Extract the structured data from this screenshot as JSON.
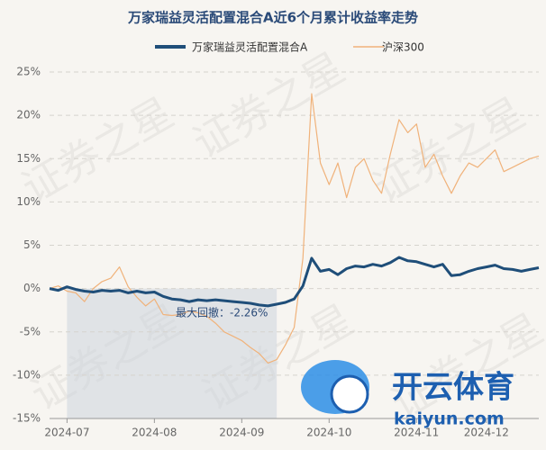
{
  "chart_data": {
    "type": "line",
    "title": "万家瑞益灵活配置混合A近6个月累计收益率走势",
    "annotation": "最大回撤：-2.26%",
    "watermark": "证券之星",
    "logo_text": "开云体育",
    "logo_url": "kaiyun.com",
    "categories": [
      null,
      null,
      "2024-07",
      null,
      null,
      null,
      null,
      null,
      null,
      null,
      null,
      null,
      "2024-08",
      null,
      null,
      null,
      null,
      null,
      null,
      null,
      null,
      null,
      "2024-09",
      null,
      null,
      null,
      null,
      null,
      null,
      null,
      null,
      null,
      "2024-10",
      null,
      null,
      null,
      null,
      null,
      null,
      null,
      null,
      null,
      "2024-11",
      null,
      null,
      null,
      null,
      null,
      null,
      null,
      "2024-12",
      null,
      null,
      null,
      null,
      null,
      null
    ],
    "series": [
      {
        "name": "万家瑞益灵活配置混合A",
        "color": "#1f4e79",
        "values": [
          0,
          -0.2,
          0.2,
          -0.1,
          -0.3,
          -0.4,
          -0.2,
          -0.3,
          -0.2,
          -0.5,
          -0.3,
          -0.5,
          -0.4,
          -0.9,
          -1.2,
          -1.3,
          -1.5,
          -1.3,
          -1.4,
          -1.3,
          -1.4,
          -1.5,
          -1.6,
          -1.7,
          -1.9,
          -2.0,
          -1.8,
          -1.6,
          -1.2,
          0.3,
          3.5,
          2.0,
          2.2,
          1.6,
          2.3,
          2.6,
          2.5,
          2.8,
          2.6,
          3.0,
          3.6,
          3.2,
          3.1,
          2.8,
          2.5,
          2.8,
          1.5,
          1.6,
          2.0,
          2.3,
          2.5,
          2.7,
          2.3,
          2.2,
          2.0,
          2.2,
          2.4
        ]
      },
      {
        "name": "沪深300",
        "color": "#f0b27a",
        "values": [
          0,
          0.3,
          -0.3,
          -0.5,
          -1.5,
          0,
          0.8,
          1.2,
          2.5,
          0.2,
          -1.0,
          -2.0,
          -1.2,
          -3.0,
          -3.1,
          -3.0,
          -2.6,
          -2.8,
          -3.2,
          -4.0,
          -5.0,
          -5.5,
          -6.0,
          -6.8,
          -7.5,
          -8.6,
          -8.2,
          -6.5,
          -4.5,
          3.5,
          22.5,
          14.5,
          12.0,
          14.5,
          10.5,
          14.0,
          15.0,
          12.5,
          11.0,
          15.5,
          19.5,
          18.0,
          19.0,
          14.0,
          15.5,
          13.0,
          11.0,
          13.0,
          14.5,
          14.0,
          15.0,
          16.0,
          13.5,
          14.0,
          14.5,
          15.0,
          15.3
        ]
      }
    ],
    "ylim": [
      -15,
      25
    ],
    "yticks": [
      {
        "value": -15,
        "label": "-15%"
      },
      {
        "value": -10,
        "label": "-10%"
      },
      {
        "value": -5,
        "label": "-5%"
      },
      {
        "value": 0,
        "label": "0%"
      },
      {
        "value": 5,
        "label": "5%"
      },
      {
        "value": 10,
        "label": "10%"
      },
      {
        "value": 15,
        "label": "15%"
      },
      {
        "value": 20,
        "label": "20%"
      },
      {
        "value": 25,
        "label": "25%"
      }
    ],
    "grid": true
  }
}
